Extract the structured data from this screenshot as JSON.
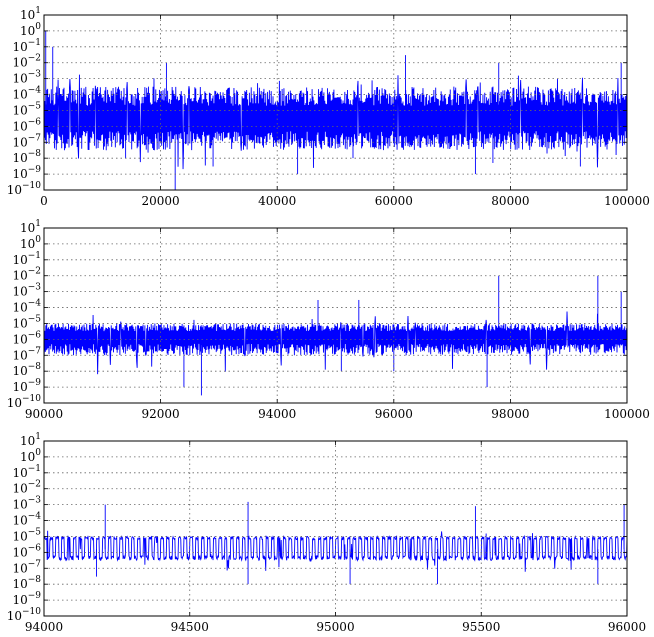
{
  "chart_data": [
    {
      "type": "line",
      "title": "",
      "xlabel": "",
      "ylabel": "",
      "y_scale": "log",
      "grid": true,
      "color": "#0000ff",
      "xlim": [
        0,
        100000
      ],
      "ylim": [
        1e-10,
        10
      ],
      "x_ticks": [
        "0",
        "20000",
        "40000",
        "60000",
        "80000",
        "100000"
      ],
      "y_ticks": [
        {
          "base": "10",
          "exp": "−10"
        },
        {
          "base": "10",
          "exp": "−9"
        },
        {
          "base": "10",
          "exp": "−8"
        },
        {
          "base": "10",
          "exp": "−7"
        },
        {
          "base": "10",
          "exp": "−6"
        },
        {
          "base": "10",
          "exp": "−5"
        },
        {
          "base": "10",
          "exp": "−4"
        },
        {
          "base": "10",
          "exp": "−3"
        },
        {
          "base": "10",
          "exp": "−2"
        },
        {
          "base": "10",
          "exp": "−1"
        },
        {
          "base": "10",
          "exp": "0"
        },
        {
          "base": "10",
          "exp": "1"
        }
      ],
      "series": [
        {
          "x_range": [
            0,
            100000
          ],
          "typical_band_log10": [
            -7.5,
            -3.5
          ],
          "median_log10": -5.5,
          "start_value": 1,
          "notable_dips": [
            {
              "x": 14000,
              "y": 1e-08
            },
            {
              "x": 22500,
              "y": 1e-10
            },
            {
              "x": 29000,
              "y": 3e-09
            },
            {
              "x": 43500,
              "y": 1e-09
            },
            {
              "x": 53000,
              "y": 1e-08
            },
            {
              "x": 74000,
              "y": 1e-09
            },
            {
              "x": 77000,
              "y": 5e-09
            },
            {
              "x": 92000,
              "y": 3e-09
            }
          ],
          "notable_peaks": [
            {
              "x": 300,
              "y": 1
            },
            {
              "x": 1500,
              "y": 0.1
            },
            {
              "x": 21000,
              "y": 0.01
            },
            {
              "x": 62000,
              "y": 0.03
            },
            {
              "x": 78000,
              "y": 0.01
            },
            {
              "x": 99000,
              "y": 0.01
            }
          ]
        }
      ]
    },
    {
      "type": "line",
      "title": "",
      "xlabel": "",
      "ylabel": "",
      "y_scale": "log",
      "grid": true,
      "color": "#0000ff",
      "xlim": [
        90000,
        100000
      ],
      "ylim": [
        1e-10,
        10
      ],
      "x_ticks": [
        "90000",
        "92000",
        "94000",
        "96000",
        "98000",
        "100000"
      ],
      "y_ticks": [
        {
          "base": "10",
          "exp": "−10"
        },
        {
          "base": "10",
          "exp": "−9"
        },
        {
          "base": "10",
          "exp": "−8"
        },
        {
          "base": "10",
          "exp": "−7"
        },
        {
          "base": "10",
          "exp": "−6"
        },
        {
          "base": "10",
          "exp": "−5"
        },
        {
          "base": "10",
          "exp": "−4"
        },
        {
          "base": "10",
          "exp": "−3"
        },
        {
          "base": "10",
          "exp": "−2"
        },
        {
          "base": "10",
          "exp": "−1"
        },
        {
          "base": "10",
          "exp": "0"
        },
        {
          "base": "10",
          "exp": "1"
        }
      ],
      "series": [
        {
          "x_range": [
            90000,
            100000
          ],
          "typical_band_log10": [
            -7,
            -5
          ],
          "median_log10": -5.8,
          "notable_dips": [
            {
              "x": 92400,
              "y": 1e-09
            },
            {
              "x": 92700,
              "y": 3e-10
            },
            {
              "x": 95100,
              "y": 1e-08
            },
            {
              "x": 96000,
              "y": 1e-08
            },
            {
              "x": 97600,
              "y": 1e-09
            }
          ],
          "notable_peaks": [
            {
              "x": 97800,
              "y": 0.01
            },
            {
              "x": 99500,
              "y": 0.01
            },
            {
              "x": 99900,
              "y": 0.001
            },
            {
              "x": 94700,
              "y": 0.0003
            },
            {
              "x": 95400,
              "y": 0.0003
            }
          ]
        }
      ]
    },
    {
      "type": "line",
      "title": "",
      "xlabel": "",
      "ylabel": "",
      "y_scale": "log",
      "grid": true,
      "color": "#0000ff",
      "xlim": [
        94000,
        96000
      ],
      "ylim": [
        1e-10,
        10
      ],
      "x_ticks": [
        "94000",
        "94500",
        "95000",
        "95500",
        "96000"
      ],
      "y_ticks": [
        {
          "base": "10",
          "exp": "−10"
        },
        {
          "base": "10",
          "exp": "−9"
        },
        {
          "base": "10",
          "exp": "−8"
        },
        {
          "base": "10",
          "exp": "−7"
        },
        {
          "base": "10",
          "exp": "−6"
        },
        {
          "base": "10",
          "exp": "−5"
        },
        {
          "base": "10",
          "exp": "−4"
        },
        {
          "base": "10",
          "exp": "−3"
        },
        {
          "base": "10",
          "exp": "−2"
        },
        {
          "base": "10",
          "exp": "−1"
        },
        {
          "base": "10",
          "exp": "0"
        },
        {
          "base": "10",
          "exp": "1"
        }
      ],
      "series": [
        {
          "x_range": [
            94000,
            96000
          ],
          "typical_band_log10": [
            -6.5,
            -5
          ],
          "median_log10": -5.8,
          "period": 20,
          "notable_dips": [
            {
              "x": 94180,
              "y": 3e-08
            },
            {
              "x": 94700,
              "y": 1e-08
            },
            {
              "x": 95050,
              "y": 1e-08
            },
            {
              "x": 95350,
              "y": 1e-08
            },
            {
              "x": 95900,
              "y": 1e-08
            }
          ],
          "notable_peaks": [
            {
              "x": 94210,
              "y": 0.001
            },
            {
              "x": 94700,
              "y": 0.0015
            },
            {
              "x": 95480,
              "y": 0.0008
            },
            {
              "x": 95990,
              "y": 0.001
            }
          ]
        }
      ]
    }
  ]
}
